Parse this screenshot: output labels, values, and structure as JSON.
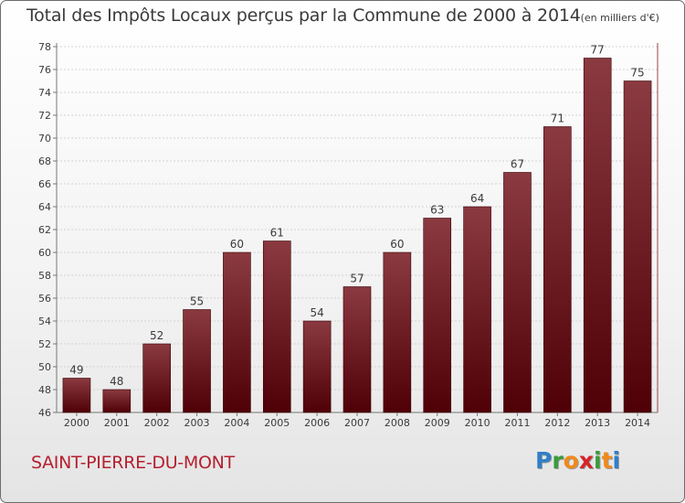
{
  "header": {
    "title": "Total des Impôts Locaux perçus par la Commune de 2000 à 2014",
    "unit": "(en milliers d'€)"
  },
  "footer": {
    "commune": "SAINT-PIERRE-DU-MONT",
    "logo_letters": [
      "P",
      "r",
      "o",
      "x",
      "i",
      "t",
      "i"
    ],
    "logo_colors": [
      "#2f7fc8",
      "#3b9b3c",
      "#f08a1a",
      "#d6242a",
      "#3b9b3c",
      "#f08a1a",
      "#2f7fc8"
    ]
  },
  "colors": {
    "bar_top": "#8a3a40",
    "bar_bottom": "#4f0006",
    "axis": "#a04048",
    "text": "#3a3a3a",
    "grid": "#d2d2d2"
  },
  "chart_data": {
    "type": "bar",
    "title": "Total des Impôts Locaux perçus par la Commune de 2000 à 2014",
    "xlabel": "",
    "ylabel": "",
    "categories": [
      "2000",
      "2001",
      "2002",
      "2003",
      "2004",
      "2005",
      "2006",
      "2007",
      "2008",
      "2009",
      "2010",
      "2011",
      "2012",
      "2013",
      "2014"
    ],
    "values": [
      49,
      48,
      52,
      55,
      60,
      61,
      54,
      57,
      60,
      63,
      64,
      67,
      71,
      77,
      75
    ],
    "ylim": [
      46,
      78
    ],
    "yticks": [
      46,
      48,
      50,
      52,
      54,
      56,
      58,
      60,
      62,
      64,
      66,
      68,
      70,
      72,
      74,
      76,
      78
    ],
    "grid": true,
    "data_labels": true,
    "legend": "none"
  }
}
